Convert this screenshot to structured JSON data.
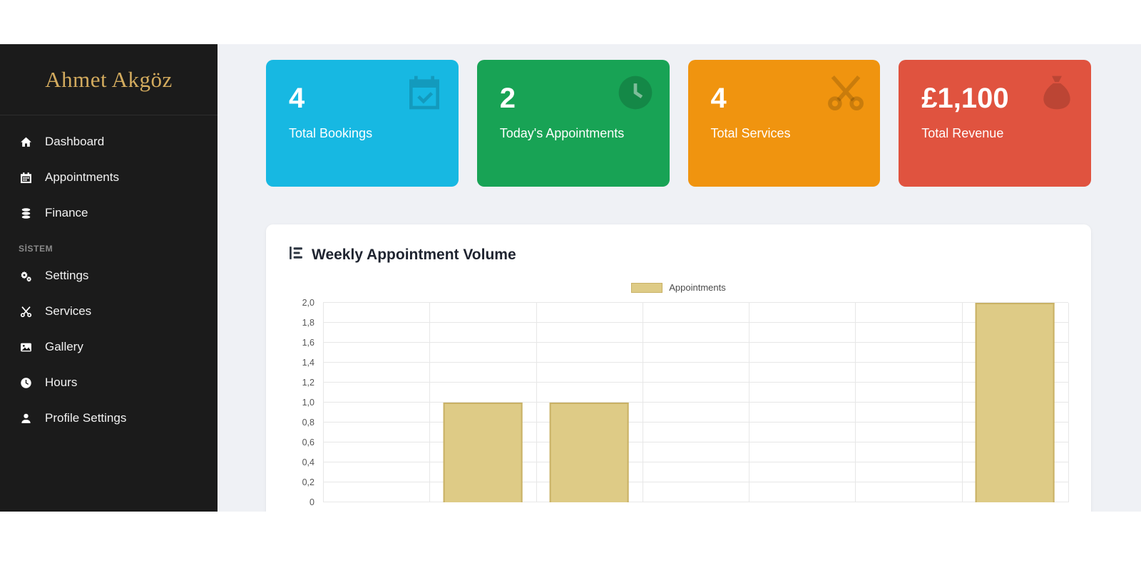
{
  "sidebar": {
    "title": "Ahmet Akgöz",
    "items_main": [
      {
        "label": "Dashboard",
        "icon": "home-icon"
      },
      {
        "label": "Appointments",
        "icon": "calendar-icon"
      },
      {
        "label": "Finance",
        "icon": "coins-icon"
      }
    ],
    "section_label": "SİSTEM",
    "items_system": [
      {
        "label": "Settings",
        "icon": "gears-icon"
      },
      {
        "label": "Services",
        "icon": "scissors-icon"
      },
      {
        "label": "Gallery",
        "icon": "image-icon"
      },
      {
        "label": "Hours",
        "icon": "clock-icon"
      },
      {
        "label": "Profile Settings",
        "icon": "user-icon"
      }
    ]
  },
  "stats": [
    {
      "value": "4",
      "label": "Total Bookings",
      "color": "#17b8e2",
      "icon": "calendar-check-icon"
    },
    {
      "value": "2",
      "label": "Today's Appointments",
      "color": "#18a355",
      "icon": "clock-icon"
    },
    {
      "value": "4",
      "label": "Total Services",
      "color": "#f0940f",
      "icon": "scissors-icon"
    },
    {
      "value": "£1,100",
      "label": "Total Revenue",
      "color": "#e0533f",
      "icon": "money-bag-icon"
    }
  ],
  "chart": {
    "title": "Weekly Appointment Volume",
    "legend_label": "Appointments",
    "bar_color": "#decb86",
    "bar_border": "#c9b165"
  },
  "chart_data": {
    "type": "bar",
    "categories": [
      "",
      "",
      "",
      "",
      "",
      "",
      ""
    ],
    "series": [
      {
        "name": "Appointments",
        "values": [
          0,
          1,
          1,
          0,
          0,
          0,
          2
        ]
      }
    ],
    "title": "Weekly Appointment Volume",
    "xlabel": "",
    "ylabel": "",
    "ylim": [
      0,
      2
    ],
    "ytick_labels": [
      "0",
      "0,2",
      "0,4",
      "0,6",
      "0,8",
      "1,0",
      "1,2",
      "1,4",
      "1,6",
      "1,8",
      "2,0"
    ],
    "grid": true,
    "legend_position": "top"
  }
}
